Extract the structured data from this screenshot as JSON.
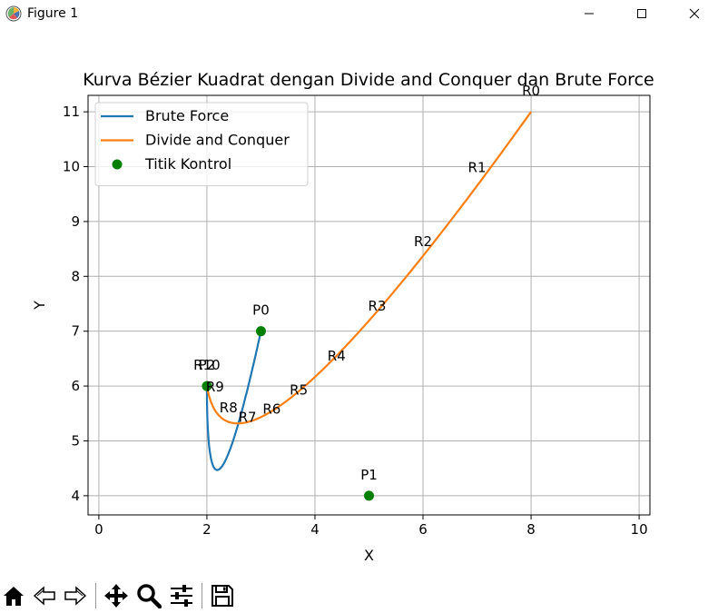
{
  "window": {
    "title": "Figure 1",
    "icon": "matplotlib-icon",
    "controls": [
      "minimize-icon",
      "maximize-icon",
      "close-icon"
    ]
  },
  "toolbar": {
    "buttons": [
      {
        "name": "home-button",
        "icon": "home-icon"
      },
      {
        "name": "back-button",
        "icon": "back-arrow-icon"
      },
      {
        "name": "forward-button",
        "icon": "forward-arrow-icon"
      },
      {
        "name": "pan-button",
        "icon": "move-icon"
      },
      {
        "name": "zoom-button",
        "icon": "zoom-icon"
      },
      {
        "name": "configure-subplots-button",
        "icon": "sliders-icon"
      },
      {
        "name": "save-button",
        "icon": "save-icon"
      }
    ]
  },
  "chart_data": {
    "type": "line",
    "title": "Kurva Bézier Kuadrat dengan Divide and Conquer dan Brute Force",
    "xlabel": "X",
    "ylabel": "Y",
    "xlim": [
      -0.2,
      10.2
    ],
    "ylim": [
      3.65,
      11.3
    ],
    "xticks": [
      0,
      2,
      4,
      6,
      8,
      10
    ],
    "yticks": [
      4,
      5,
      6,
      7,
      8,
      9,
      10,
      11
    ],
    "grid": true,
    "legend_position": "upper left",
    "series": [
      {
        "name": "Brute Force",
        "color": "#1f77b4",
        "kind": "quadratic-bezier",
        "control_points": [
          [
            3,
            7
          ],
          [
            2,
            2.5
          ],
          [
            2,
            6
          ]
        ]
      },
      {
        "name": "Divide and Conquer",
        "color": "#ff7f0e",
        "kind": "quadratic-bezier",
        "control_points": [
          [
            8,
            11
          ],
          [
            2.45,
            3.35
          ],
          [
            2,
            6
          ]
        ]
      },
      {
        "name": "Titik Kontrol",
        "color": "#008000",
        "kind": "scatter",
        "points": [
          [
            3,
            7
          ],
          [
            5,
            4
          ],
          [
            2,
            6
          ]
        ]
      }
    ],
    "annotations": [
      {
        "text": "P0",
        "x": 3,
        "y": 7
      },
      {
        "text": "P1",
        "x": 5,
        "y": 4
      },
      {
        "text": "P2",
        "x": 2,
        "y": 6
      },
      {
        "text": "R0",
        "x": 8,
        "y": 11
      },
      {
        "text": "R1",
        "x": 7,
        "y": 9.6
      },
      {
        "text": "R2",
        "x": 6,
        "y": 8.25
      },
      {
        "text": "R3",
        "x": 5.15,
        "y": 7.08
      },
      {
        "text": "R4",
        "x": 4.4,
        "y": 6.17
      },
      {
        "text": "R5",
        "x": 3.7,
        "y": 5.55
      },
      {
        "text": "R6",
        "x": 3.2,
        "y": 5.2
      },
      {
        "text": "R7",
        "x": 2.75,
        "y": 5.05
      },
      {
        "text": "R8",
        "x": 2.4,
        "y": 5.22
      },
      {
        "text": "R9",
        "x": 2.15,
        "y": 5.6
      },
      {
        "text": "R10",
        "x": 2,
        "y": 6
      }
    ]
  }
}
